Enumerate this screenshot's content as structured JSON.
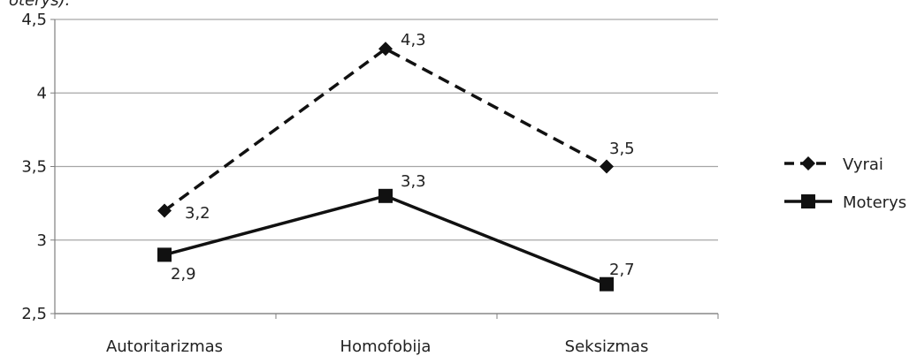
{
  "header": {
    "cut_text": "oterys)."
  },
  "chart_data": {
    "type": "line",
    "categories": [
      "Autoritarizmas",
      "Homofobija",
      "Seksizmas"
    ],
    "series": [
      {
        "name": "Vyrai",
        "values": [
          3.2,
          4.3,
          3.5
        ],
        "labels": [
          "3,2",
          "4,3",
          "3,5"
        ],
        "line_style": "dashed",
        "marker": "diamond"
      },
      {
        "name": "Moterys",
        "values": [
          2.9,
          3.3,
          2.7
        ],
        "labels": [
          "2,9",
          "3,3",
          "2,7"
        ],
        "line_style": "solid",
        "marker": "square"
      }
    ],
    "ylim": [
      2.5,
      4.5
    ],
    "y_ticks": [
      {
        "value": 4.5,
        "label": "4,5"
      },
      {
        "value": 4.0,
        "label": "4"
      },
      {
        "value": 3.5,
        "label": "3,5"
      },
      {
        "value": 3.0,
        "label": "3"
      },
      {
        "value": 2.5,
        "label": "2,5"
      }
    ],
    "grid": true,
    "legend_position": "right",
    "colors": {
      "line": "#111111",
      "grid": "#a6a6a6",
      "axis": "#7f7f7f",
      "text": "#222222"
    }
  }
}
